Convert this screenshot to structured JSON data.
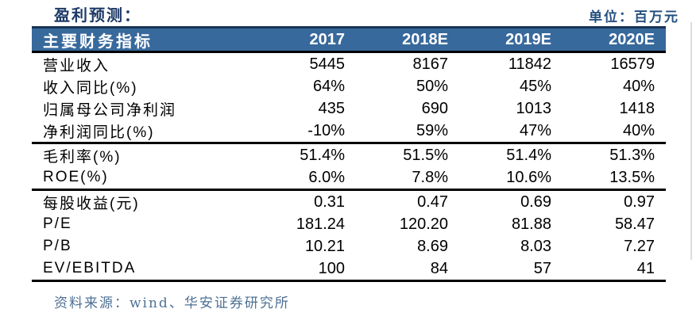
{
  "page": {
    "title": "盈利预测：",
    "unit_label": "单位：百万元",
    "source": "资料来源：wind、华安证券研究所"
  },
  "colors": {
    "header_background": "#38699C",
    "header_top_border": "#1A3354",
    "divider": "#000000",
    "title_text": "#1E3A66",
    "unit_text": "#24507F",
    "source_text": "#4E7094"
  },
  "table": {
    "header": [
      "主要财务指标",
      "2017",
      "2018E",
      "2019E",
      "2020E"
    ],
    "groups": [
      {
        "rows": [
          {
            "label": "营业收入",
            "values": [
              "5445",
              "8167",
              "11842",
              "16579"
            ]
          },
          {
            "label": "收入同比(%)",
            "values": [
              "64%",
              "50%",
              "45%",
              "40%"
            ]
          },
          {
            "label": "归属母公司净利润",
            "values": [
              "435",
              "690",
              "1013",
              "1418"
            ]
          },
          {
            "label": "净利润同比(%)",
            "values": [
              "-10%",
              "59%",
              "47%",
              "40%"
            ]
          }
        ]
      },
      {
        "rows": [
          {
            "label": "毛利率(%)",
            "values": [
              "51.4%",
              "51.5%",
              "51.4%",
              "51.3%"
            ]
          },
          {
            "label": "ROE(%)",
            "values": [
              "6.0%",
              "7.8%",
              "10.6%",
              "13.5%"
            ]
          }
        ]
      },
      {
        "rows": [
          {
            "label": "每股收益(元)",
            "values": [
              "0.31",
              "0.47",
              "0.69",
              "0.97"
            ]
          },
          {
            "label": "P/E",
            "values": [
              "181.24",
              "120.20",
              "81.88",
              "58.47"
            ]
          },
          {
            "label": "P/B",
            "values": [
              "10.21",
              "8.69",
              "8.03",
              "7.27"
            ]
          },
          {
            "label": "EV/EBITDA",
            "values": [
              "100",
              "84",
              "57",
              "41"
            ]
          }
        ]
      }
    ]
  }
}
